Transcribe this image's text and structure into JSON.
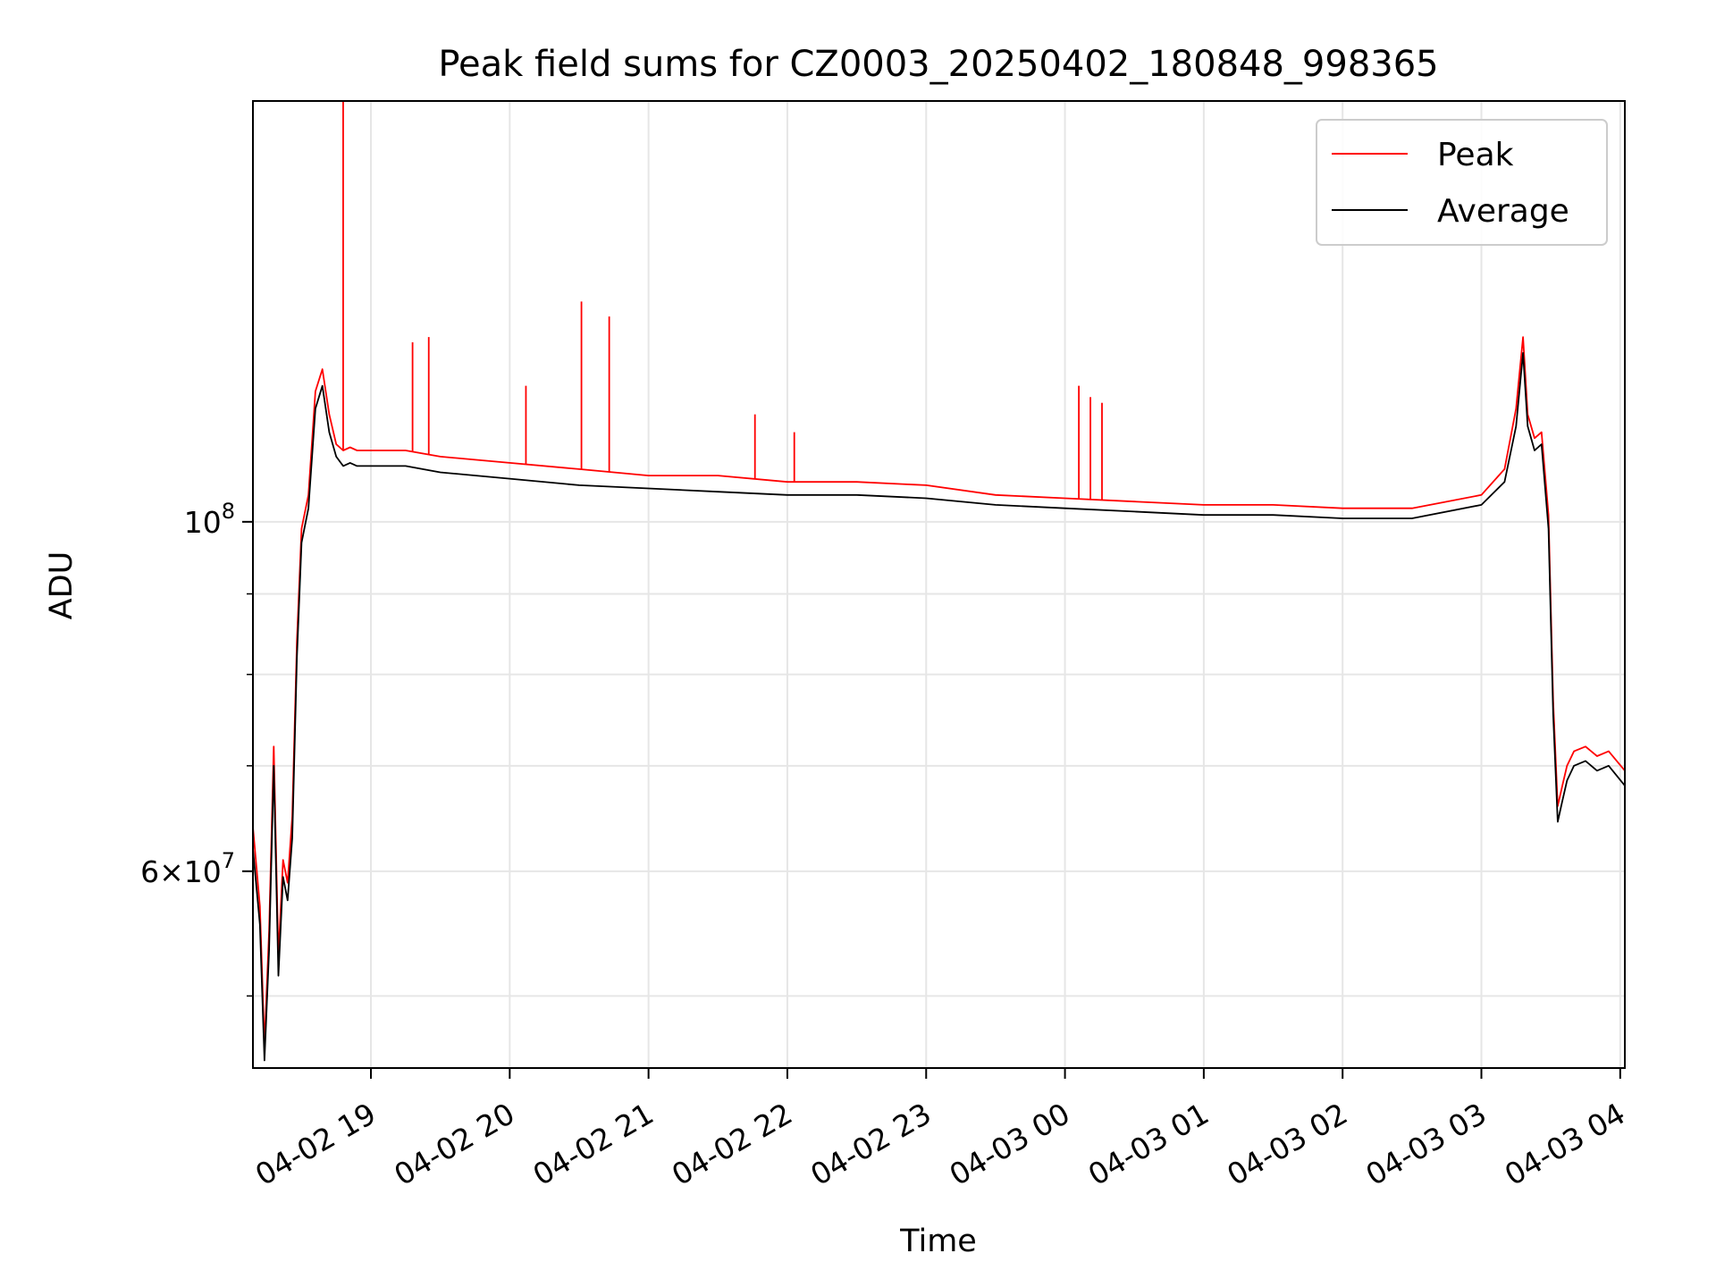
{
  "chart_data": {
    "type": "line",
    "title": "Peak field sums for CZ0003_20250402_180848_998365",
    "xlabel": "Time",
    "ylabel": "ADU",
    "yscale": "log",
    "grid": true,
    "legend_position": "top-right",
    "xlim": [
      "2025-04-02 18:09",
      "2025-04-03 04:02"
    ],
    "ylim": [
      45000000,
      185000000
    ],
    "x_ticks": [
      {
        "label": "04-02 19",
        "value": "2025-04-02 19:00"
      },
      {
        "label": "04-02 20",
        "value": "2025-04-02 20:00"
      },
      {
        "label": "04-02 21",
        "value": "2025-04-02 21:00"
      },
      {
        "label": "04-02 22",
        "value": "2025-04-02 22:00"
      },
      {
        "label": "04-02 23",
        "value": "2025-04-02 23:00"
      },
      {
        "label": "04-03 00",
        "value": "2025-04-03 00:00"
      },
      {
        "label": "04-03 01",
        "value": "2025-04-03 01:00"
      },
      {
        "label": "04-03 02",
        "value": "2025-04-03 02:00"
      },
      {
        "label": "04-03 03",
        "value": "2025-04-03 03:00"
      },
      {
        "label": "04-03 04",
        "value": "2025-04-03 04:00"
      }
    ],
    "y_ticks": [
      {
        "value": 100000000,
        "base": "10",
        "exp": "8"
      },
      {
        "value": 60000000,
        "mant": "6",
        "base": "10",
        "exp": "7"
      }
    ],
    "y_minor_ticks": [
      50000000,
      70000000,
      80000000,
      90000000
    ],
    "x": [
      "2025-04-02 18:09",
      "2025-04-02 18:12",
      "2025-04-02 18:14",
      "2025-04-02 18:16",
      "2025-04-02 18:18",
      "2025-04-02 18:20",
      "2025-04-02 18:22",
      "2025-04-02 18:24",
      "2025-04-02 18:26",
      "2025-04-02 18:28",
      "2025-04-02 18:30",
      "2025-04-02 18:33",
      "2025-04-02 18:36",
      "2025-04-02 18:39",
      "2025-04-02 18:42",
      "2025-04-02 18:45",
      "2025-04-02 18:48",
      "2025-04-02 18:51",
      "2025-04-02 18:54",
      "2025-04-02 19:00",
      "2025-04-02 19:15",
      "2025-04-02 19:30",
      "2025-04-02 20:00",
      "2025-04-02 20:30",
      "2025-04-02 21:00",
      "2025-04-02 21:30",
      "2025-04-02 22:00",
      "2025-04-02 22:30",
      "2025-04-02 23:00",
      "2025-04-02 23:30",
      "2025-04-03 00:00",
      "2025-04-03 00:30",
      "2025-04-03 01:00",
      "2025-04-03 01:30",
      "2025-04-03 02:00",
      "2025-04-03 02:30",
      "2025-04-03 03:00",
      "2025-04-03 03:10",
      "2025-04-03 03:15",
      "2025-04-03 03:18",
      "2025-04-03 03:20",
      "2025-04-03 03:23",
      "2025-04-03 03:26",
      "2025-04-03 03:29",
      "2025-04-03 03:31",
      "2025-04-03 03:33",
      "2025-04-03 03:35",
      "2025-04-03 03:37",
      "2025-04-03 03:40",
      "2025-04-03 03:45",
      "2025-04-03 03:50",
      "2025-04-03 03:55",
      "2025-04-03 04:02"
    ],
    "series": [
      {
        "name": "Peak",
        "color": "#ff0000",
        "values": [
          64000000,
          57000000,
          46500000,
          55000000,
          72000000,
          53000000,
          61000000,
          59000000,
          65000000,
          84000000,
          99000000,
          104000000,
          121000000,
          125000000,
          117000000,
          112000000,
          111000000,
          111500000,
          111000000,
          111000000,
          111000000,
          110000000,
          109000000,
          108000000,
          107000000,
          107000000,
          106000000,
          106000000,
          105500000,
          104000000,
          103500000,
          103000000,
          102500000,
          102500000,
          102000000,
          102000000,
          104000000,
          108000000,
          118000000,
          131000000,
          117000000,
          113000000,
          114000000,
          101000000,
          77000000,
          66000000,
          68000000,
          70000000,
          71500000,
          72000000,
          71000000,
          71500000,
          69500000
        ]
      },
      {
        "name": "Average",
        "color": "#000000",
        "values": [
          62000000,
          55500000,
          45500000,
          53500000,
          70000000,
          51500000,
          59500000,
          57500000,
          63000000,
          82000000,
          97000000,
          102000000,
          118000000,
          122000000,
          114000000,
          110000000,
          108500000,
          109000000,
          108500000,
          108500000,
          108500000,
          107500000,
          106500000,
          105500000,
          105000000,
          104500000,
          104000000,
          104000000,
          103500000,
          102500000,
          102000000,
          101500000,
          101000000,
          101000000,
          100500000,
          100500000,
          102500000,
          106000000,
          115000000,
          128000000,
          115000000,
          111000000,
          112000000,
          99000000,
          75500000,
          64500000,
          66500000,
          68500000,
          70000000,
          70500000,
          69500000,
          70000000,
          68000000
        ]
      }
    ],
    "spikes": [
      {
        "x": "2025-04-02 18:48",
        "peak": 185000000
      },
      {
        "x": "2025-04-02 19:18",
        "peak": 130000000
      },
      {
        "x": "2025-04-02 19:25",
        "peak": 131000000
      },
      {
        "x": "2025-04-02 20:07",
        "peak": 122000000
      },
      {
        "x": "2025-04-02 20:31",
        "peak": 138000000
      },
      {
        "x": "2025-04-02 20:43",
        "peak": 135000000
      },
      {
        "x": "2025-04-02 21:46",
        "peak": 117000000
      },
      {
        "x": "2025-04-02 22:03",
        "peak": 114000000
      },
      {
        "x": "2025-04-03 00:06",
        "peak": 122000000
      },
      {
        "x": "2025-04-03 00:11",
        "peak": 120000000
      },
      {
        "x": "2025-04-03 00:16",
        "peak": 119000000
      }
    ]
  }
}
